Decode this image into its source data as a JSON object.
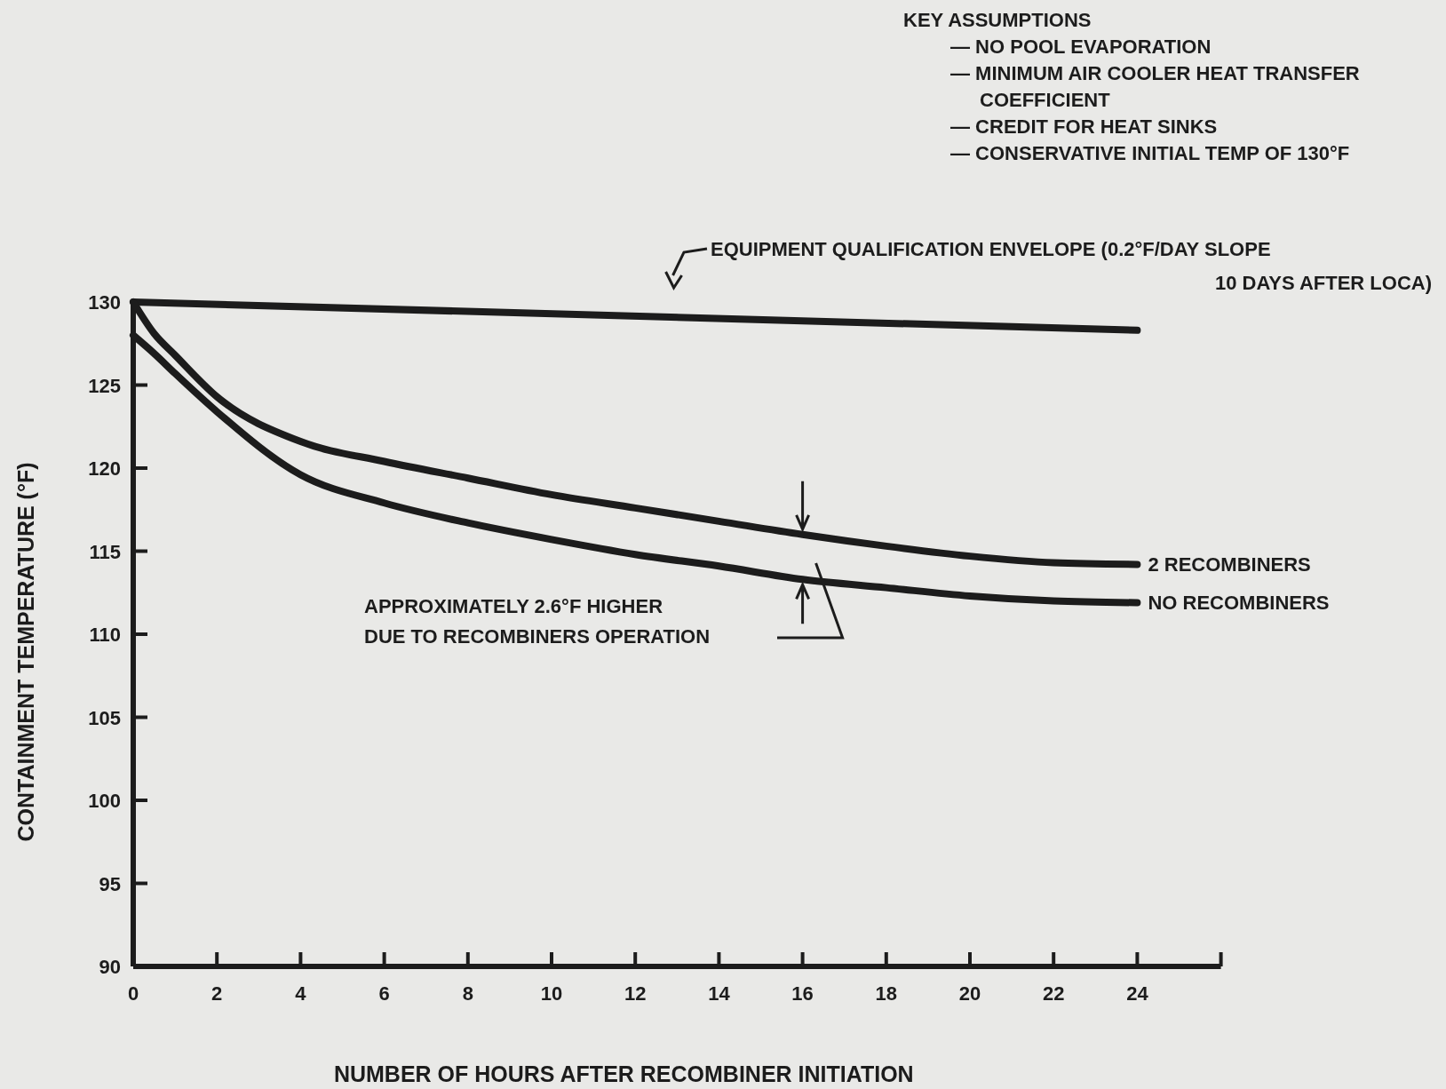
{
  "chart_data": {
    "type": "line",
    "xlabel": "NUMBER OF HOURS AFTER RECOMBINER INITIATION",
    "ylabel": "CONTAINMENT TEMPERATURE (°F)",
    "xlim": [
      0,
      26
    ],
    "xticks": [
      0,
      2,
      4,
      6,
      8,
      10,
      12,
      14,
      16,
      18,
      20,
      22,
      24,
      {
        "value": 26,
        "label": null
      }
    ],
    "ylim": [
      90,
      130
    ],
    "yticks": [
      90,
      95,
      100,
      105,
      110,
      115,
      120,
      125,
      130
    ],
    "grid": false,
    "marker": "none",
    "line_style": "solid",
    "series": [
      {
        "name": "EQUIPMENT QUALIFICATION ENVELOPE (0.2°F/DAY SLOPE 10 DAYS AFTER LOCA)",
        "color": "#1c1c1c",
        "x": [
          0,
          24
        ],
        "values": [
          130,
          128.3
        ]
      },
      {
        "name": "2 RECOMBINERS",
        "color": "#1c1c1c",
        "x": [
          0,
          0.5,
          1,
          2,
          4,
          6,
          8,
          10,
          12,
          14,
          16,
          18,
          20,
          22,
          24
        ],
        "values": [
          130,
          128.1,
          126.8,
          124.3,
          121.6,
          120.4,
          119.4,
          118.4,
          117.6,
          116.8,
          116,
          115.3,
          114.7,
          114.3,
          114.2
        ]
      },
      {
        "name": "NO RECOMBINERS",
        "color": "#1c1c1c",
        "x": [
          0,
          0.5,
          1,
          2,
          4,
          6,
          8,
          10,
          12,
          14,
          16,
          18,
          20,
          22,
          24
        ],
        "values": [
          128,
          126.9,
          125.7,
          123.4,
          119.6,
          117.9,
          116.7,
          115.7,
          114.8,
          114.1,
          113.3,
          112.8,
          112.3,
          112,
          111.9
        ]
      }
    ],
    "annotations": [
      "KEY ASSUMPTIONS",
      "— NO POOL EVAPORATION",
      "— MINIMUM AIR COOLER HEAT TRANSFER COEFFICIENT",
      "— CREDIT FOR HEAT SINKS",
      "— CONSERVATIVE INITIAL TEMP OF 130°F",
      "APPROXIMATELY 2.6°F HIGHER DUE TO RECOMBINERS OPERATION"
    ]
  }
}
